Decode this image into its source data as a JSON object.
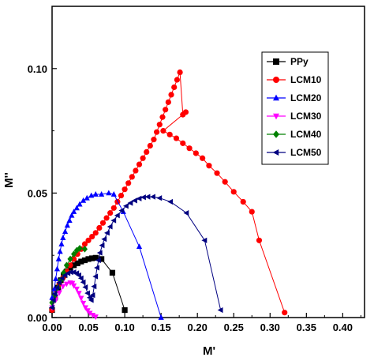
{
  "chart_data": {
    "type": "scatter",
    "title": "",
    "xlabel": "M'",
    "ylabel": "M''",
    "xlim": [
      0,
      0.43
    ],
    "ylim": [
      0,
      0.125
    ],
    "xticks": [
      "0.00",
      "0.05",
      "0.10",
      "0.15",
      "0.20",
      "0.25",
      "0.30",
      "0.35",
      "0.40"
    ],
    "yticks": [
      "0.00",
      "0.05",
      "0.10"
    ],
    "grid": false,
    "legend_position": "top-right",
    "series": [
      {
        "name": "PPy",
        "color": "#000000",
        "marker": "square",
        "points": [
          [
            0.0,
            0.003
          ],
          [
            0.004,
            0.008
          ],
          [
            0.008,
            0.012
          ],
          [
            0.012,
            0.015
          ],
          [
            0.016,
            0.017
          ],
          [
            0.02,
            0.0185
          ],
          [
            0.025,
            0.02
          ],
          [
            0.03,
            0.021
          ],
          [
            0.035,
            0.0218
          ],
          [
            0.04,
            0.0225
          ],
          [
            0.045,
            0.023
          ],
          [
            0.05,
            0.0235
          ],
          [
            0.055,
            0.0238
          ],
          [
            0.06,
            0.024
          ],
          [
            0.068,
            0.0235
          ],
          [
            0.083,
            0.018
          ],
          [
            0.1,
            0.003
          ]
        ]
      },
      {
        "name": "LCM10",
        "color": "#ff0000",
        "marker": "circle",
        "points": [
          [
            0.0,
            0.003
          ],
          [
            0.003,
            0.008
          ],
          [
            0.006,
            0.011
          ],
          [
            0.01,
            0.0135
          ],
          [
            0.015,
            0.016
          ],
          [
            0.02,
            0.0185
          ],
          [
            0.025,
            0.021
          ],
          [
            0.03,
            0.0235
          ],
          [
            0.035,
            0.0255
          ],
          [
            0.04,
            0.0275
          ],
          [
            0.045,
            0.0295
          ],
          [
            0.05,
            0.031
          ],
          [
            0.055,
            0.0325
          ],
          [
            0.06,
            0.034
          ],
          [
            0.065,
            0.036
          ],
          [
            0.07,
            0.038
          ],
          [
            0.075,
            0.04
          ],
          [
            0.08,
            0.042
          ],
          [
            0.085,
            0.044
          ],
          [
            0.09,
            0.0465
          ],
          [
            0.095,
            0.049
          ],
          [
            0.1,
            0.0515
          ],
          [
            0.105,
            0.054
          ],
          [
            0.11,
            0.0565
          ],
          [
            0.115,
            0.059
          ],
          [
            0.12,
            0.0615
          ],
          [
            0.125,
            0.064
          ],
          [
            0.13,
            0.0665
          ],
          [
            0.135,
            0.069
          ],
          [
            0.14,
            0.0715
          ],
          [
            0.144,
            0.0745
          ],
          [
            0.148,
            0.0775
          ],
          [
            0.152,
            0.0805
          ],
          [
            0.156,
            0.0835
          ],
          [
            0.16,
            0.0865
          ],
          [
            0.164,
            0.0895
          ],
          [
            0.168,
            0.0925
          ],
          [
            0.172,
            0.0955
          ],
          [
            0.176,
            0.0985
          ],
          [
            0.18,
            0.0815
          ],
          [
            0.184,
            0.0825
          ],
          [
            0.153,
            0.075
          ],
          [
            0.162,
            0.0735
          ],
          [
            0.171,
            0.072
          ],
          [
            0.18,
            0.07
          ],
          [
            0.189,
            0.068
          ],
          [
            0.198,
            0.066
          ],
          [
            0.207,
            0.064
          ],
          [
            0.216,
            0.061
          ],
          [
            0.227,
            0.058
          ],
          [
            0.238,
            0.0545
          ],
          [
            0.25,
            0.0505
          ],
          [
            0.263,
            0.0465
          ],
          [
            0.275,
            0.0425
          ],
          [
            0.285,
            0.031
          ],
          [
            0.32,
            0.002
          ]
        ]
      },
      {
        "name": "LCM20",
        "color": "#0000ff",
        "marker": "triangle-up",
        "points": [
          [
            0.0,
            0.008
          ],
          [
            0.003,
            0.0115
          ],
          [
            0.005,
            0.0155
          ],
          [
            0.007,
            0.0195
          ],
          [
            0.009,
            0.0235
          ],
          [
            0.011,
            0.0265
          ],
          [
            0.013,
            0.0295
          ],
          [
            0.015,
            0.032
          ],
          [
            0.018,
            0.0345
          ],
          [
            0.021,
            0.037
          ],
          [
            0.024,
            0.039
          ],
          [
            0.027,
            0.041
          ],
          [
            0.03,
            0.0425
          ],
          [
            0.034,
            0.044
          ],
          [
            0.038,
            0.0455
          ],
          [
            0.043,
            0.047
          ],
          [
            0.048,
            0.048
          ],
          [
            0.054,
            0.049
          ],
          [
            0.06,
            0.0495
          ],
          [
            0.068,
            0.0495
          ],
          [
            0.078,
            0.05
          ],
          [
            0.085,
            0.0495
          ],
          [
            0.098,
            0.0425
          ],
          [
            0.12,
            0.0285
          ],
          [
            0.15,
            0.0
          ]
        ]
      },
      {
        "name": "LCM30",
        "color": "#ff00ff",
        "marker": "triangle-down",
        "points": [
          [
            0.0,
            0.004
          ],
          [
            0.005,
            0.007
          ],
          [
            0.01,
            0.01
          ],
          [
            0.015,
            0.0125
          ],
          [
            0.02,
            0.0135
          ],
          [
            0.025,
            0.014
          ],
          [
            0.028,
            0.0138
          ],
          [
            0.03,
            0.0128
          ],
          [
            0.034,
            0.0115
          ],
          [
            0.037,
            0.0098
          ],
          [
            0.04,
            0.0078
          ],
          [
            0.043,
            0.0058
          ],
          [
            0.046,
            0.004
          ],
          [
            0.049,
            0.0028
          ],
          [
            0.052,
            0.0018
          ],
          [
            0.056,
            0.001
          ],
          [
            0.06,
            0.0003
          ]
        ]
      },
      {
        "name": "LCM40",
        "color": "#008000",
        "marker": "diamond",
        "points": [
          [
            0.0,
            0.006
          ],
          [
            0.004,
            0.009
          ],
          [
            0.008,
            0.012
          ],
          [
            0.012,
            0.015
          ],
          [
            0.016,
            0.018
          ],
          [
            0.02,
            0.021
          ],
          [
            0.025,
            0.0235
          ],
          [
            0.03,
            0.0255
          ],
          [
            0.034,
            0.027
          ],
          [
            0.038,
            0.0278
          ],
          [
            0.045,
            0.0275
          ]
        ]
      },
      {
        "name": "LCM50",
        "color": "#000080",
        "marker": "triangle-left",
        "points": [
          [
            0.0,
            0.004
          ],
          [
            0.002,
            0.007
          ],
          [
            0.004,
            0.0095
          ],
          [
            0.007,
            0.012
          ],
          [
            0.01,
            0.014
          ],
          [
            0.014,
            0.0158
          ],
          [
            0.018,
            0.017
          ],
          [
            0.022,
            0.0178
          ],
          [
            0.026,
            0.0182
          ],
          [
            0.03,
            0.0182
          ],
          [
            0.034,
            0.0178
          ],
          [
            0.037,
            0.017
          ],
          [
            0.04,
            0.0158
          ],
          [
            0.043,
            0.0142
          ],
          [
            0.046,
            0.0122
          ],
          [
            0.049,
            0.0098
          ],
          [
            0.052,
            0.008
          ],
          [
            0.054,
            0.007
          ],
          [
            0.056,
            0.009
          ],
          [
            0.058,
            0.0125
          ],
          [
            0.06,
            0.0165
          ],
          [
            0.062,
            0.02
          ],
          [
            0.064,
            0.023
          ],
          [
            0.066,
            0.026
          ],
          [
            0.069,
            0.029
          ],
          [
            0.072,
            0.0315
          ],
          [
            0.076,
            0.034
          ],
          [
            0.08,
            0.0365
          ],
          [
            0.085,
            0.039
          ],
          [
            0.09,
            0.041
          ],
          [
            0.096,
            0.043
          ],
          [
            0.102,
            0.0448
          ],
          [
            0.108,
            0.046
          ],
          [
            0.114,
            0.047
          ],
          [
            0.12,
            0.0478
          ],
          [
            0.126,
            0.0483
          ],
          [
            0.132,
            0.0485
          ],
          [
            0.139,
            0.0485
          ],
          [
            0.148,
            0.048
          ],
          [
            0.163,
            0.0465
          ],
          [
            0.185,
            0.042
          ],
          [
            0.21,
            0.031
          ],
          [
            0.232,
            0.003
          ]
        ]
      }
    ]
  }
}
